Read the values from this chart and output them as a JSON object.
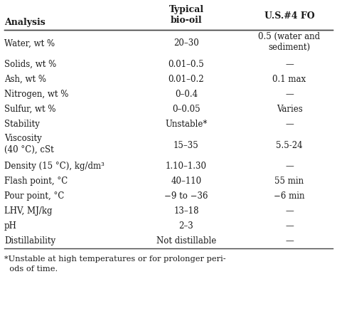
{
  "col_headers": [
    "Analysis",
    "Typical\nbio-oil",
    "U.S.#4 FO"
  ],
  "rows": [
    [
      "Water, wt %",
      "20–30",
      "0.5 (water and\nsediment)"
    ],
    [
      "Solids, wt %",
      "0.01–0.5",
      "—"
    ],
    [
      "Ash, wt %",
      "0.01–0.2",
      "0.1 max"
    ],
    [
      "Nitrogen, wt %",
      "0–0.4",
      "—"
    ],
    [
      "Sulfur, wt %",
      "0–0.05",
      "Varies"
    ],
    [
      "Stability",
      "Unstable*",
      "—"
    ],
    [
      "Viscosity\n(40 °C), cSt",
      "15–35",
      "5.5-24"
    ],
    [
      "Density (15 °C), kg/dm³",
      "1.10–1.30",
      "—"
    ],
    [
      "Flash point, °C",
      "40–110",
      "55 min"
    ],
    [
      "Pour point, °C",
      "−9 to −36",
      "−6 min"
    ],
    [
      "LHV, MJ/kg",
      "13–18",
      "—"
    ],
    [
      "pH",
      "2–3",
      "—"
    ],
    [
      "Distillability",
      "Not distillable",
      "—"
    ]
  ],
  "footnote1": "*Unstable at high temperatures or for prolonger peri-",
  "footnote2": "  ods of time.",
  "font_size": 8.5,
  "header_font_size": 9.0,
  "bg_color": "#ffffff",
  "text_color": "#1a1a1a",
  "line_color": "#444444",
  "fig_width": 4.74,
  "fig_height": 4.51,
  "dpi": 100
}
